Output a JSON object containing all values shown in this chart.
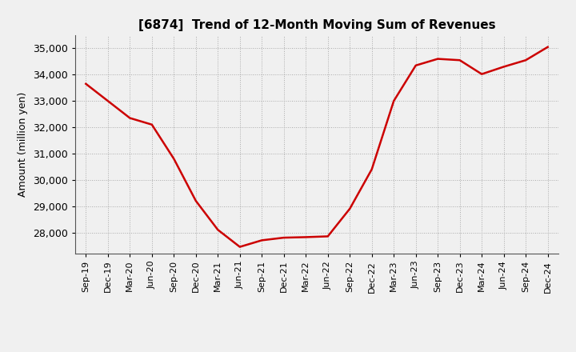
{
  "title": "[6874]  Trend of 12-Month Moving Sum of Revenues",
  "ylabel": "Amount (million yen)",
  "line_color": "#cc0000",
  "line_width": 1.8,
  "background_color": "#f0f0f0",
  "plot_bg_color": "#f0f0f0",
  "grid_color": "#aaaaaa",
  "labels": [
    "Sep-19",
    "Dec-19",
    "Mar-20",
    "Jun-20",
    "Sep-20",
    "Dec-20",
    "Mar-21",
    "Jun-21",
    "Sep-21",
    "Dec-21",
    "Mar-22",
    "Jun-22",
    "Sep-22",
    "Dec-22",
    "Mar-23",
    "Jun-23",
    "Sep-23",
    "Dec-23",
    "Mar-24",
    "Jun-24",
    "Sep-24",
    "Dec-24"
  ],
  "values": [
    33650,
    33000,
    32350,
    32100,
    30800,
    29200,
    28100,
    27450,
    27700,
    27800,
    27820,
    27850,
    28900,
    30400,
    33000,
    34350,
    34600,
    34550,
    34020,
    34300,
    34550,
    35050
  ],
  "ylim_min": 27200,
  "ylim_max": 35500,
  "yticks": [
    28000,
    29000,
    30000,
    31000,
    32000,
    33000,
    34000,
    35000
  ]
}
